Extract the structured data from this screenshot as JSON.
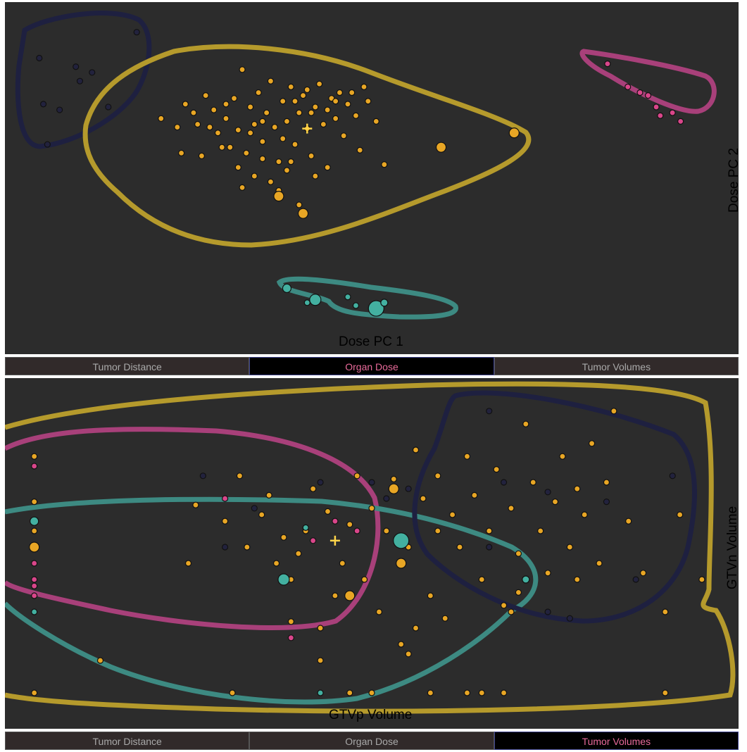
{
  "chart_data": [
    {
      "type": "scatter",
      "xlabel": "Dose PC 1",
      "ylabel": "Dose PC 2",
      "grid": false,
      "tabs": [
        {
          "label": "Tumor Distance",
          "active": false
        },
        {
          "label": "Organ Dose",
          "active": true
        },
        {
          "label": "Tumor Volumes",
          "active": false
        }
      ],
      "colors": {
        "orange": "#e8a625",
        "pink": "#d9468a",
        "teal": "#43b0a0",
        "navy": "#22223d",
        "cluster_outline_orange": "#b59a2c",
        "cluster_outline_pink": "#a8407a",
        "cluster_outline_teal": "#3d8a82",
        "cluster_outline_navy": "#1e2040",
        "centroid": "#ffd54a"
      },
      "centroid": {
        "x": 0.1,
        "y": 0.35
      },
      "series": [
        {
          "color": "orange",
          "points": [
            [
              -3.5,
              0.7
            ],
            [
              -3.1,
              0.4
            ],
            [
              -2.9,
              1.2
            ],
            [
              -2.7,
              0.9
            ],
            [
              -2.6,
              0.5
            ],
            [
              -2.4,
              1.5
            ],
            [
              -2.2,
              1.0
            ],
            [
              -2.1,
              0.2
            ],
            [
              -1.9,
              0.7
            ],
            [
              -1.8,
              -0.3
            ],
            [
              -1.7,
              1.4
            ],
            [
              -1.6,
              0.3
            ],
            [
              -1.5,
              2.4
            ],
            [
              -1.4,
              -0.5
            ],
            [
              -1.3,
              1.1
            ],
            [
              -1.2,
              0.5
            ],
            [
              -1.1,
              1.6
            ],
            [
              -1.0,
              -0.1
            ],
            [
              -0.9,
              0.9
            ],
            [
              -0.8,
              2.0
            ],
            [
              -0.7,
              0.4
            ],
            [
              -0.6,
              -0.8
            ],
            [
              -0.5,
              1.3
            ],
            [
              -0.4,
              0.6
            ],
            [
              -0.3,
              1.8
            ],
            [
              -0.2,
              -0.2
            ],
            [
              -0.1,
              0.9
            ],
            [
              0.0,
              1.5
            ],
            [
              0.1,
              0.35
            ],
            [
              0.2,
              -0.6
            ],
            [
              0.3,
              1.1
            ],
            [
              0.4,
              1.9
            ],
            [
              0.5,
              0.5
            ],
            [
              0.6,
              -1.0
            ],
            [
              0.7,
              1.4
            ],
            [
              0.8,
              0.7
            ],
            [
              0.9,
              1.6
            ],
            [
              1.0,
              0.1
            ],
            [
              1.1,
              1.2
            ],
            [
              1.3,
              0.8
            ],
            [
              1.4,
              -0.4
            ],
            [
              1.6,
              1.3
            ],
            [
              1.8,
              0.6
            ],
            [
              2.0,
              -0.9
            ],
            [
              -2.5,
              -0.6
            ],
            [
              -2.0,
              -0.3
            ],
            [
              -1.6,
              -1.0
            ],
            [
              -1.2,
              -1.3
            ],
            [
              -0.8,
              -1.5
            ],
            [
              -0.4,
              -1.1
            ],
            [
              -0.1,
              -2.3
            ],
            [
              0.3,
              -1.3
            ],
            [
              -0.6,
              -1.8
            ],
            [
              -1.0,
              -0.7
            ],
            [
              -0.2,
              1.3
            ],
            [
              0.1,
              1.7
            ],
            [
              0.6,
              1.0
            ],
            [
              -1.3,
              0.2
            ],
            [
              -1.9,
              1.2
            ],
            [
              -2.3,
              0.4
            ],
            [
              -1.0,
              0.6
            ],
            [
              -0.5,
              0.0
            ],
            [
              0.8,
              1.3
            ],
            [
              1.5,
              1.8
            ],
            [
              -3.0,
              -0.5
            ],
            [
              -1.5,
              -1.7
            ],
            [
              1.2,
              1.6
            ],
            [
              -0.3,
              -0.8
            ],
            [
              0.2,
              0.9
            ]
          ],
          "sizes": "small"
        },
        {
          "color": "orange",
          "points": [
            [
              5.2,
              0.2
            ],
            [
              3.4,
              -0.3
            ],
            [
              -0.6,
              -2.0
            ],
            [
              0.0,
              -2.6
            ]
          ],
          "sizes": "large"
        },
        {
          "color": "navy",
          "points": [
            [
              -6.5,
              2.8
            ],
            [
              -5.6,
              2.5
            ],
            [
              -5.2,
              2.3
            ],
            [
              -5.5,
              2.0
            ],
            [
              -6.4,
              1.2
            ],
            [
              -6.0,
              1.0
            ],
            [
              -4.8,
              1.1
            ],
            [
              -6.3,
              -0.2
            ],
            [
              -4.1,
              3.7
            ]
          ]
        },
        {
          "color": "pink",
          "points": [
            [
              7.5,
              2.6
            ],
            [
              8.0,
              1.8
            ],
            [
              8.3,
              1.6
            ],
            [
              8.5,
              1.5
            ],
            [
              8.7,
              1.1
            ],
            [
              8.8,
              0.8
            ],
            [
              9.1,
              0.9
            ],
            [
              9.3,
              0.6
            ]
          ]
        },
        {
          "color": "teal",
          "points": [
            [
              -0.4,
              -5.2
            ],
            [
              0.1,
              -5.7
            ],
            [
              0.3,
              -5.6
            ],
            [
              1.1,
              -5.5
            ],
            [
              1.3,
              -5.8
            ],
            [
              1.8,
              -5.9
            ],
            [
              2.0,
              -5.7
            ]
          ],
          "sizes": "mixed"
        }
      ]
    },
    {
      "type": "scatter",
      "xlabel": "GTVp Volume",
      "ylabel": "GTVn Volume",
      "grid": false,
      "tabs": [
        {
          "label": "Tumor Distance",
          "active": false
        },
        {
          "label": "Organ Dose",
          "active": false
        },
        {
          "label": "Tumor Volumes",
          "active": true
        }
      ],
      "centroid": {
        "x": 0.45,
        "y": 0.52
      },
      "series": [
        {
          "color": "orange",
          "points": [
            [
              0.04,
              0.78
            ],
            [
              0.04,
              0.64
            ],
            [
              0.04,
              0.55
            ],
            [
              0.04,
              0.05
            ],
            [
              0.13,
              0.15
            ],
            [
              0.25,
              0.45
            ],
            [
              0.26,
              0.63
            ],
            [
              0.3,
              0.58
            ],
            [
              0.32,
              0.72
            ],
            [
              0.31,
              0.05
            ],
            [
              0.33,
              0.5
            ],
            [
              0.35,
              0.6
            ],
            [
              0.36,
              0.66
            ],
            [
              0.37,
              0.45
            ],
            [
              0.38,
              0.53
            ],
            [
              0.39,
              0.4
            ],
            [
              0.4,
              0.48
            ],
            [
              0.41,
              0.55
            ],
            [
              0.42,
              0.68
            ],
            [
              0.43,
              0.25
            ],
            [
              0.44,
              0.61
            ],
            [
              0.45,
              0.35
            ],
            [
              0.46,
              0.45
            ],
            [
              0.47,
              0.57
            ],
            [
              0.48,
              0.72
            ],
            [
              0.49,
              0.4
            ],
            [
              0.5,
              0.62
            ],
            [
              0.51,
              0.3
            ],
            [
              0.52,
              0.55
            ],
            [
              0.53,
              0.71
            ],
            [
              0.54,
              0.45
            ],
            [
              0.55,
              0.5
            ],
            [
              0.56,
              0.8
            ],
            [
              0.57,
              0.65
            ],
            [
              0.58,
              0.35
            ],
            [
              0.59,
              0.72
            ],
            [
              0.6,
              0.28
            ],
            [
              0.61,
              0.6
            ],
            [
              0.62,
              0.5
            ],
            [
              0.63,
              0.78
            ],
            [
              0.64,
              0.66
            ],
            [
              0.65,
              0.4
            ],
            [
              0.66,
              0.55
            ],
            [
              0.67,
              0.74
            ],
            [
              0.68,
              0.32
            ],
            [
              0.69,
              0.62
            ],
            [
              0.7,
              0.48
            ],
            [
              0.71,
              0.88
            ],
            [
              0.72,
              0.7
            ],
            [
              0.73,
              0.55
            ],
            [
              0.74,
              0.42
            ],
            [
              0.75,
              0.64
            ],
            [
              0.76,
              0.78
            ],
            [
              0.77,
              0.5
            ],
            [
              0.78,
              0.68
            ],
            [
              0.79,
              0.6
            ],
            [
              0.8,
              0.82
            ],
            [
              0.81,
              0.45
            ],
            [
              0.82,
              0.7
            ],
            [
              0.83,
              0.92
            ],
            [
              0.85,
              0.58
            ],
            [
              0.87,
              0.42
            ],
            [
              0.9,
              0.3
            ],
            [
              0.92,
              0.6
            ],
            [
              0.95,
              0.4
            ],
            [
              0.47,
              0.05
            ],
            [
              0.5,
              0.05
            ],
            [
              0.58,
              0.05
            ],
            [
              0.63,
              0.05
            ],
            [
              0.65,
              0.05
            ],
            [
              0.68,
              0.05
            ],
            [
              0.9,
              0.05
            ],
            [
              0.55,
              0.17
            ],
            [
              0.54,
              0.2
            ],
            [
              0.43,
              0.15
            ],
            [
              0.39,
              0.27
            ],
            [
              0.69,
              0.3
            ],
            [
              0.56,
              0.25
            ],
            [
              0.59,
              0.55
            ],
            [
              0.7,
              0.36
            ],
            [
              0.78,
              0.4
            ]
          ]
        },
        {
          "color": "orange",
          "points": [
            [
              0.04,
              0.5
            ],
            [
              0.47,
              0.35
            ],
            [
              0.53,
              0.68
            ],
            [
              0.54,
              0.45
            ]
          ],
          "sizes": "large"
        },
        {
          "color": "navy",
          "points": [
            [
              0.66,
              0.92
            ],
            [
              0.68,
              0.7
            ],
            [
              0.74,
              0.67
            ],
            [
              0.82,
              0.64
            ],
            [
              0.91,
              0.72
            ],
            [
              0.3,
              0.5
            ],
            [
              0.27,
              0.72
            ],
            [
              0.34,
              0.62
            ],
            [
              0.43,
              0.7
            ],
            [
              0.5,
              0.7
            ],
            [
              0.52,
              0.65
            ],
            [
              0.55,
              0.68
            ],
            [
              0.66,
              0.5
            ],
            [
              0.74,
              0.3
            ],
            [
              0.86,
              0.4
            ],
            [
              0.77,
              0.28
            ]
          ]
        },
        {
          "color": "pink",
          "points": [
            [
              0.04,
              0.75
            ],
            [
              0.04,
              0.45
            ],
            [
              0.04,
              0.4
            ],
            [
              0.04,
              0.38
            ],
            [
              0.04,
              0.35
            ],
            [
              0.3,
              0.65
            ],
            [
              0.39,
              0.22
            ],
            [
              0.42,
              0.52
            ],
            [
              0.45,
              0.58
            ],
            [
              0.48,
              0.55
            ]
          ]
        },
        {
          "color": "teal",
          "points": [
            [
              0.04,
              0.58
            ],
            [
              0.04,
              0.3
            ],
            [
              0.38,
              0.4
            ],
            [
              0.41,
              0.56
            ],
            [
              0.43,
              0.05
            ],
            [
              0.54,
              0.52
            ],
            [
              0.71,
              0.4
            ]
          ],
          "sizes": "mixed"
        }
      ]
    }
  ]
}
